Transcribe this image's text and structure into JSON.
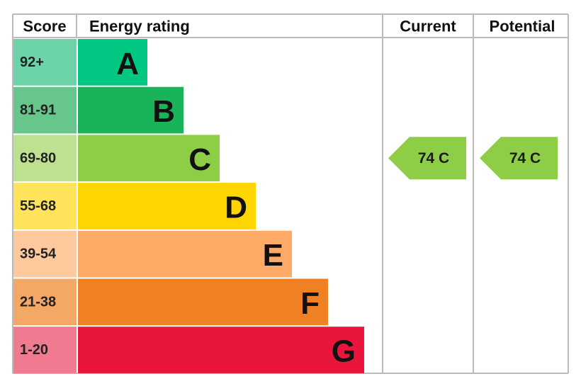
{
  "header": {
    "score": "Score",
    "energy_rating": "Energy rating",
    "current": "Current",
    "potential": "Potential"
  },
  "bands": [
    {
      "score": "92+",
      "letter": "A",
      "color": "#00c781",
      "score_color": "#6dd3a8"
    },
    {
      "score": "81-91",
      "letter": "B",
      "color": "#19b459",
      "score_color": "#66c68c"
    },
    {
      "score": "69-80",
      "letter": "C",
      "color": "#8dce46",
      "score_color": "#bde18f"
    },
    {
      "score": "55-68",
      "letter": "D",
      "color": "#ffd500",
      "score_color": "#ffe35a"
    },
    {
      "score": "39-54",
      "letter": "E",
      "color": "#fcaa65",
      "score_color": "#fdc89c"
    },
    {
      "score": "21-38",
      "letter": "F",
      "color": "#ef8023",
      "score_color": "#f4a866"
    },
    {
      "score": "1-20",
      "letter": "G",
      "color": "#e9153b",
      "score_color": "#f07b91"
    }
  ],
  "current": {
    "label": "74 C",
    "color": "#8dce46"
  },
  "potential": {
    "label": "74 C",
    "color": "#8dce46"
  }
}
